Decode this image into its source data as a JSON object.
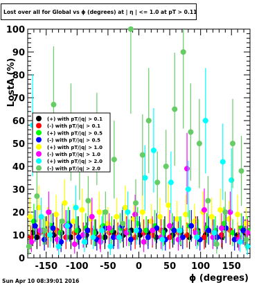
{
  "title": "Lost over all for Global vs ϕ (degrees) at | η | <= 1.0 at pT > 0.11",
  "footer": "Sun Apr 10 08:39:01 2016",
  "chart_data": {
    "type": "scatter",
    "xlabel": "ϕ (degrees)",
    "ylabel": "LostA (%)",
    "xlim": [
      -180,
      180
    ],
    "ylim": [
      0,
      100
    ],
    "x_ticks": [
      -150,
      -100,
      -50,
      0,
      50,
      100,
      150
    ],
    "y_ticks": [
      0,
      10,
      20,
      30,
      40,
      50,
      60,
      70,
      80,
      90,
      100
    ],
    "legend_position": "left-middle",
    "grid": false,
    "colors": {
      "pos_pt_0_1": "#000000",
      "neg_pt_0_1": "#ff0000",
      "pos_pt_0_5": "#00ff00",
      "neg_pt_0_5": "#0000ff",
      "pos_pt_1_0": "#ffff00",
      "neg_pt_1_0": "#ff00ff",
      "pos_pt_2_0": "#00ffff",
      "neg_pt_2_0": "#66cc66"
    },
    "series": [
      {
        "name": "(+) with pT/|q| > 0.1",
        "color": "#000000",
        "points": [
          [
            -172,
            11
          ],
          [
            -165,
            9
          ],
          [
            -150,
            12
          ],
          [
            -138,
            10
          ],
          [
            -125,
            11
          ],
          [
            -110,
            9
          ],
          [
            -98,
            12
          ],
          [
            -85,
            10
          ],
          [
            -70,
            11
          ],
          [
            -55,
            9
          ],
          [
            -40,
            11
          ],
          [
            -25,
            10
          ],
          [
            -12,
            12
          ],
          [
            2,
            10
          ],
          [
            15,
            11
          ],
          [
            28,
            9
          ],
          [
            42,
            12
          ],
          [
            55,
            10
          ],
          [
            68,
            11
          ],
          [
            82,
            9
          ],
          [
            95,
            12
          ],
          [
            108,
            10
          ],
          [
            122,
            11
          ],
          [
            135,
            9
          ],
          [
            148,
            12
          ],
          [
            160,
            10
          ],
          [
            172,
            11
          ]
        ]
      },
      {
        "name": "(-) with pT/|q| > 0.1",
        "color": "#ff0000",
        "points": [
          [
            -175,
            9
          ],
          [
            -160,
            11
          ],
          [
            -147,
            10
          ],
          [
            -133,
            12
          ],
          [
            -118,
            9
          ],
          [
            -104,
            11
          ],
          [
            -90,
            10
          ],
          [
            -77,
            12
          ],
          [
            -63,
            9
          ],
          [
            -48,
            11
          ],
          [
            -34,
            10
          ],
          [
            -20,
            12
          ],
          [
            -6,
            9
          ],
          [
            8,
            11
          ],
          [
            22,
            10
          ],
          [
            36,
            12
          ],
          [
            50,
            9
          ],
          [
            64,
            11
          ],
          [
            78,
            10
          ],
          [
            92,
            12
          ],
          [
            106,
            9
          ],
          [
            120,
            11
          ],
          [
            134,
            10
          ],
          [
            148,
            12
          ],
          [
            162,
            9
          ],
          [
            175,
            11
          ]
        ]
      },
      {
        "name": "(+) with pT/|q| > 0.5",
        "color": "#00ff00",
        "points": [
          [
            -170,
            16
          ],
          [
            -155,
            12
          ],
          [
            -142,
            14
          ],
          [
            -128,
            11
          ],
          [
            -114,
            15
          ],
          [
            -100,
            12
          ],
          [
            -86,
            13
          ],
          [
            -72,
            11
          ],
          [
            -58,
            14
          ],
          [
            -44,
            12
          ],
          [
            -30,
            13
          ],
          [
            -16,
            11
          ],
          [
            -2,
            15
          ],
          [
            12,
            12
          ],
          [
            26,
            14
          ],
          [
            40,
            11
          ],
          [
            54,
            13
          ],
          [
            68,
            12
          ],
          [
            82,
            14
          ],
          [
            96,
            11
          ],
          [
            110,
            13
          ],
          [
            124,
            12
          ],
          [
            138,
            15
          ],
          [
            152,
            11
          ],
          [
            166,
            13
          ],
          [
            176,
            12
          ]
        ]
      },
      {
        "name": "(-) with pT/|q| > 0.5",
        "color": "#0000ff",
        "points": [
          [
            -168,
            14
          ],
          [
            -153,
            8
          ],
          [
            -139,
            13
          ],
          [
            -126,
            7
          ],
          [
            -112,
            14
          ],
          [
            -97,
            9
          ],
          [
            -83,
            12
          ],
          [
            -68,
            8
          ],
          [
            -54,
            13
          ],
          [
            -41,
            9
          ],
          [
            -27,
            14
          ],
          [
            -13,
            8
          ],
          [
            1,
            12
          ],
          [
            15,
            9
          ],
          [
            29,
            13
          ],
          [
            43,
            8
          ],
          [
            57,
            12
          ],
          [
            71,
            9
          ],
          [
            85,
            14
          ],
          [
            99,
            8
          ],
          [
            113,
            12
          ],
          [
            127,
            9
          ],
          [
            141,
            13
          ],
          [
            155,
            8
          ],
          [
            169,
            12
          ]
        ]
      },
      {
        "name": "(+) with pT/|q| > 1.0",
        "color": "#ffff00",
        "points": [
          [
            -176,
            18
          ],
          [
            -162,
            22
          ],
          [
            -148,
            15
          ],
          [
            -134,
            19
          ],
          [
            -120,
            24
          ],
          [
            -106,
            16
          ],
          [
            -92,
            21
          ],
          [
            -78,
            17
          ],
          [
            -64,
            20
          ],
          [
            -50,
            15
          ],
          [
            -36,
            18
          ],
          [
            -22,
            22
          ],
          [
            -8,
            17
          ],
          [
            6,
            20
          ],
          [
            20,
            16
          ],
          [
            34,
            18
          ],
          [
            48,
            23
          ],
          [
            62,
            17
          ],
          [
            76,
            19
          ],
          [
            90,
            16
          ],
          [
            104,
            20
          ],
          [
            118,
            18
          ],
          [
            132,
            21
          ],
          [
            146,
            17
          ],
          [
            160,
            19
          ],
          [
            174,
            15
          ]
        ]
      },
      {
        "name": "(-) with pT/|q| > 1.0",
        "color": "#ff00ff",
        "points": [
          [
            -174,
            7
          ],
          [
            -160,
            12
          ],
          [
            -146,
            20
          ],
          [
            -132,
            8
          ],
          [
            -118,
            14
          ],
          [
            -104,
            6
          ],
          [
            -90,
            10
          ],
          [
            -76,
            18
          ],
          [
            -62,
            7
          ],
          [
            -48,
            13
          ],
          [
            -34,
            9
          ],
          [
            -20,
            11
          ],
          [
            -6,
            19
          ],
          [
            8,
            7
          ],
          [
            22,
            12
          ],
          [
            36,
            9
          ],
          [
            50,
            14
          ],
          [
            64,
            8
          ],
          [
            78,
            39
          ],
          [
            92,
            11
          ],
          [
            106,
            21
          ],
          [
            120,
            9
          ],
          [
            134,
            13
          ],
          [
            148,
            20
          ],
          [
            162,
            8
          ],
          [
            176,
            11
          ]
        ]
      },
      {
        "name": "(+) with pT/|q| > 2.0",
        "color": "#00ffff",
        "points": [
          [
            -172,
            58
          ],
          [
            -158,
            18
          ],
          [
            -144,
            10
          ],
          [
            -130,
            5
          ],
          [
            -116,
            14
          ],
          [
            -102,
            22
          ],
          [
            -88,
            7
          ],
          [
            -74,
            9
          ],
          [
            -60,
            12
          ],
          [
            -46,
            5
          ],
          [
            -32,
            9
          ],
          [
            -18,
            20
          ],
          [
            -4,
            12
          ],
          [
            10,
            35
          ],
          [
            24,
            47
          ],
          [
            38,
            8
          ],
          [
            52,
            33
          ],
          [
            66,
            12
          ],
          [
            80,
            30
          ],
          [
            94,
            9
          ],
          [
            108,
            60
          ],
          [
            122,
            11
          ],
          [
            136,
            42
          ],
          [
            150,
            34
          ],
          [
            164,
            7
          ],
          [
            176,
            5
          ]
        ]
      },
      {
        "name": "(-) with pT/|q| > 2.0",
        "color": "#66cc66",
        "points": [
          [
            -178,
            5
          ],
          [
            -165,
            27
          ],
          [
            -152,
            12
          ],
          [
            -138,
            67
          ],
          [
            -124,
            16
          ],
          [
            -110,
            55
          ],
          [
            -96,
            42
          ],
          [
            -82,
            25
          ],
          [
            -68,
            52
          ],
          [
            -54,
            20
          ],
          [
            -40,
            43
          ],
          [
            -26,
            15
          ],
          [
            -13,
            100
          ],
          [
            -5,
            24
          ],
          [
            6,
            45
          ],
          [
            16,
            60
          ],
          [
            30,
            33
          ],
          [
            44,
            40
          ],
          [
            58,
            65
          ],
          [
            72,
            90
          ],
          [
            84,
            55
          ],
          [
            98,
            50
          ],
          [
            112,
            25
          ],
          [
            126,
            6
          ],
          [
            140,
            20
          ],
          [
            152,
            50
          ],
          [
            166,
            38
          ],
          [
            174,
            8
          ]
        ]
      }
    ]
  }
}
